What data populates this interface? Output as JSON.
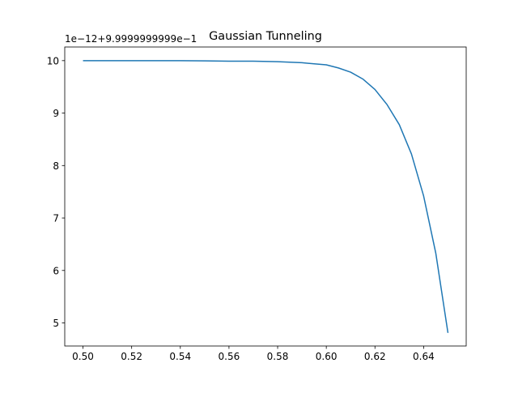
{
  "chart_data": {
    "type": "line",
    "title": "Gaussian Tunneling",
    "offset_label": "1e−12+9.9999999999e−1",
    "xlabel": "",
    "ylabel": "",
    "xlim": [
      0.4925,
      0.6575
    ],
    "ylim": [
      4.56,
      10.26
    ],
    "x_ticks": [
      0.5,
      0.52,
      0.54,
      0.56,
      0.58,
      0.6,
      0.62,
      0.64
    ],
    "x_tick_labels": [
      "0.50",
      "0.52",
      "0.54",
      "0.56",
      "0.58",
      "0.60",
      "0.62",
      "0.64"
    ],
    "y_ticks": [
      5,
      6,
      7,
      8,
      9,
      10
    ],
    "y_tick_labels": [
      "5",
      "6",
      "7",
      "8",
      "9",
      "10"
    ],
    "grid": false,
    "series": [
      {
        "color": "#1f77b4",
        "x": [
          0.5,
          0.52,
          0.54,
          0.56,
          0.57,
          0.58,
          0.59,
          0.595,
          0.6,
          0.605,
          0.61,
          0.615,
          0.62,
          0.625,
          0.63,
          0.635,
          0.64,
          0.645,
          0.65
        ],
        "y": [
          10.0,
          10.0,
          10.0,
          9.99,
          9.99,
          9.98,
          9.96,
          9.94,
          9.92,
          9.86,
          9.78,
          9.65,
          9.45,
          9.16,
          8.78,
          8.22,
          7.42,
          6.33,
          4.81
        ]
      }
    ]
  }
}
